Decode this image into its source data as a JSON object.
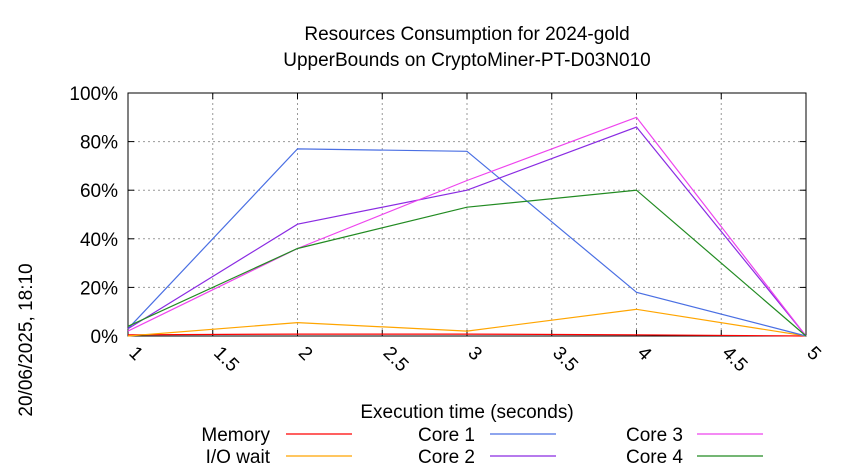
{
  "side_label": "20/06/2025, 18:10",
  "chart_data": {
    "type": "line",
    "title_lines": [
      "Resources Consumption for 2024-gold",
      "UpperBounds on CryptoMiner-PT-D03N010"
    ],
    "xlabel": "Execution time (seconds)",
    "ylabel": "",
    "x": [
      1,
      2,
      3,
      4,
      5
    ],
    "xlim": [
      1,
      5
    ],
    "ylim": [
      0,
      100
    ],
    "x_ticks": [
      "1",
      "1.5",
      "2",
      "2.5",
      "3",
      "3.5",
      "4",
      "4.5",
      "5"
    ],
    "x_tick_values": [
      1,
      1.5,
      2,
      2.5,
      3,
      3.5,
      4,
      4.5,
      5
    ],
    "y_ticks": [
      "0%",
      "20%",
      "40%",
      "60%",
      "80%",
      "100%"
    ],
    "y_tick_values": [
      0,
      20,
      40,
      60,
      80,
      100
    ],
    "grid": true,
    "legend_position": "bottom",
    "series": [
      {
        "name": "Memory",
        "color": "#ff0000",
        "values": [
          0.5,
          0.8,
          0.8,
          0.5,
          0
        ]
      },
      {
        "name": "I/O wait",
        "color": "#ffa500",
        "values": [
          0,
          5.5,
          2,
          11,
          0
        ]
      },
      {
        "name": "Core 1",
        "color": "#4a6fe3",
        "values": [
          3,
          77,
          76,
          18,
          0
        ]
      },
      {
        "name": "Core 2",
        "color": "#8a2be2",
        "values": [
          3,
          46,
          60,
          86,
          0
        ]
      },
      {
        "name": "Core 3",
        "color": "#ee44ee",
        "values": [
          2,
          36,
          64,
          90,
          0
        ]
      },
      {
        "name": "Core 4",
        "color": "#228b22",
        "values": [
          4,
          36,
          53,
          60,
          0
        ]
      }
    ]
  }
}
